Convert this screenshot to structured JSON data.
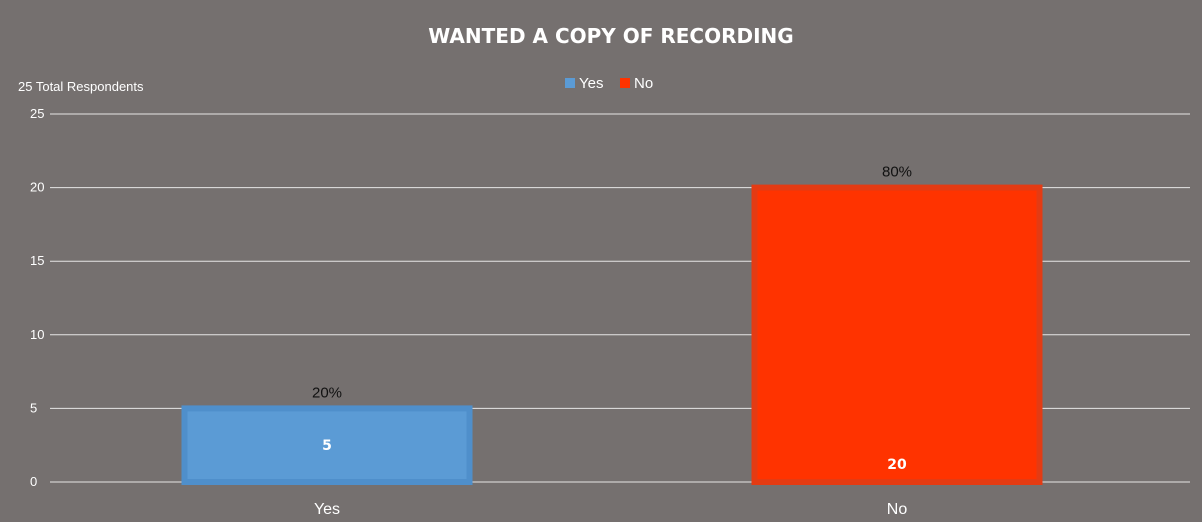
{
  "chart_data": {
    "type": "bar",
    "title": "WANTED A COPY OF RECORDING",
    "subtitle": "25 Total Respondents",
    "categories": [
      "Yes",
      "No"
    ],
    "values": [
      5,
      20
    ],
    "percent_labels": [
      "20%",
      "80%"
    ],
    "value_labels": [
      "5",
      "20"
    ],
    "legend": {
      "position": "top",
      "entries": [
        "Yes",
        "No"
      ]
    },
    "colors": [
      "#5b9bd5",
      "#ff3300"
    ],
    "border_colors": [
      "#4f8fcb",
      "#e43b13"
    ],
    "ylim": [
      0,
      25
    ],
    "y_ticks": [
      "0",
      "5",
      "10",
      "15",
      "20",
      "25"
    ],
    "grid": true,
    "xlabel": "",
    "ylabel": ""
  },
  "style": {
    "background": "#75706f",
    "gridline_color": "#e6e6e6",
    "text_color": "#ffffff",
    "percent_label_color": "#111111"
  }
}
